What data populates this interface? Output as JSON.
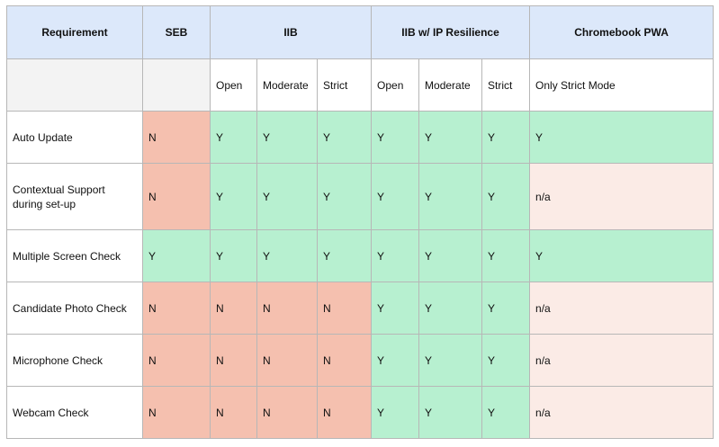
{
  "headers": {
    "requirement": "Requirement",
    "seb": "SEB",
    "iib": "IIB",
    "iib_ip": "IIB w/ IP Resilience",
    "chromebook": "Chromebook PWA"
  },
  "subheaders": [
    "Open",
    "Moderate",
    "Strict",
    "Open",
    "Moderate",
    "Strict",
    "Only Strict Mode"
  ],
  "rows": [
    {
      "label": "Auto Update",
      "cells": [
        {
          "v": "N",
          "s": "N"
        },
        {
          "v": "Y",
          "s": "Y"
        },
        {
          "v": "Y",
          "s": "Y"
        },
        {
          "v": "Y",
          "s": "Y"
        },
        {
          "v": "Y",
          "s": "Y"
        },
        {
          "v": "Y",
          "s": "Y"
        },
        {
          "v": "Y",
          "s": "Y"
        },
        {
          "v": "Y",
          "s": "Y"
        }
      ]
    },
    {
      "label": "Contextual Support during set-up",
      "cells": [
        {
          "v": "N",
          "s": "N"
        },
        {
          "v": "Y",
          "s": "Y"
        },
        {
          "v": "Y",
          "s": "Y"
        },
        {
          "v": "Y",
          "s": "Y"
        },
        {
          "v": "Y",
          "s": "Y"
        },
        {
          "v": "Y",
          "s": "Y"
        },
        {
          "v": "Y",
          "s": "Y"
        },
        {
          "v": "n/a",
          "s": "na"
        }
      ]
    },
    {
      "label": "Multiple Screen Check",
      "cells": [
        {
          "v": "Y",
          "s": "Y"
        },
        {
          "v": "Y",
          "s": "Y"
        },
        {
          "v": "Y",
          "s": "Y"
        },
        {
          "v": "Y",
          "s": "Y"
        },
        {
          "v": "Y",
          "s": "Y"
        },
        {
          "v": "Y",
          "s": "Y"
        },
        {
          "v": "Y",
          "s": "Y"
        },
        {
          "v": "Y",
          "s": "Y"
        }
      ]
    },
    {
      "label": "Candidate Photo Check",
      "cells": [
        {
          "v": "N",
          "s": "N"
        },
        {
          "v": "N",
          "s": "N"
        },
        {
          "v": "N",
          "s": "N"
        },
        {
          "v": "N",
          "s": "N"
        },
        {
          "v": "Y",
          "s": "Y"
        },
        {
          "v": "Y",
          "s": "Y"
        },
        {
          "v": "Y",
          "s": "Y"
        },
        {
          "v": "n/a",
          "s": "na"
        }
      ]
    },
    {
      "label": "Microphone Check",
      "cells": [
        {
          "v": "N",
          "s": "N"
        },
        {
          "v": "N",
          "s": "N"
        },
        {
          "v": "N",
          "s": "N"
        },
        {
          "v": "N",
          "s": "N"
        },
        {
          "v": "Y",
          "s": "Y"
        },
        {
          "v": "Y",
          "s": "Y"
        },
        {
          "v": "Y",
          "s": "Y"
        },
        {
          "v": "n/a",
          "s": "na"
        }
      ]
    },
    {
      "label": "Webcam Check",
      "cells": [
        {
          "v": "N",
          "s": "N"
        },
        {
          "v": "N",
          "s": "N"
        },
        {
          "v": "N",
          "s": "N"
        },
        {
          "v": "N",
          "s": "N"
        },
        {
          "v": "Y",
          "s": "Y"
        },
        {
          "v": "Y",
          "s": "Y"
        },
        {
          "v": "Y",
          "s": "Y"
        },
        {
          "v": "n/a",
          "s": "na"
        }
      ]
    }
  ],
  "colors": {
    "header_bg": "#dce8fa",
    "yes_bg": "#b7f0d0",
    "no_bg": "#f5c0af",
    "na_bg": "#fbebe6",
    "blank_bg": "#f3f3f3",
    "border": "#b7b7b7"
  }
}
